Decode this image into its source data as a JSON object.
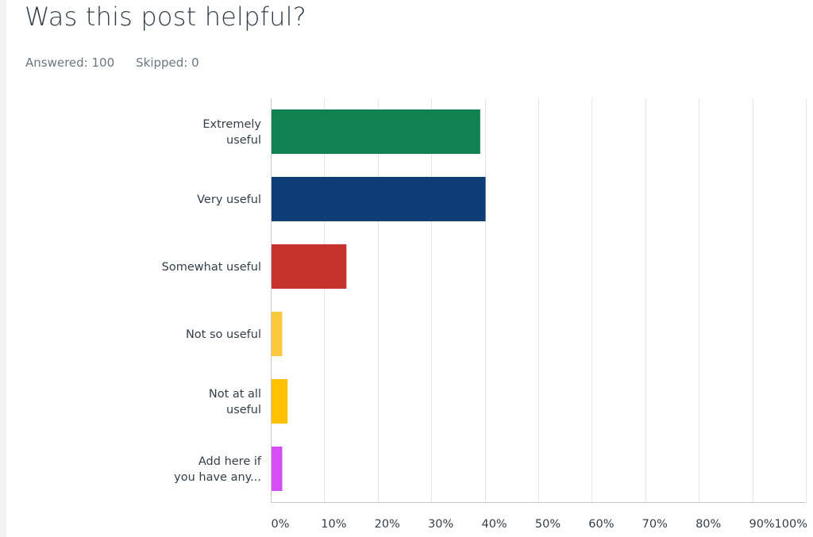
{
  "question": {
    "title": "Was this post helpful?",
    "answered": "Answered: 100",
    "skipped": "Skipped: 0"
  },
  "chart_data": {
    "type": "bar",
    "orientation": "horizontal",
    "categories": [
      [
        "Extremely",
        "useful"
      ],
      [
        "Very useful"
      ],
      [
        "Somewhat useful"
      ],
      [
        "Not so useful"
      ],
      [
        "Not at all",
        "useful"
      ],
      [
        "Add here if",
        "you have any..."
      ]
    ],
    "values": [
      39,
      40,
      14,
      2,
      3,
      2
    ],
    "colors": [
      "#128152",
      "#0e3d77",
      "#c5332c",
      "#fcc93e",
      "#ffc000",
      "#d54df5"
    ],
    "xticks": [
      "0%",
      "10%",
      "20%",
      "30%",
      "40%",
      "50%",
      "60%",
      "70%",
      "80%",
      "90%",
      "100%"
    ],
    "xlim": [
      0,
      100
    ],
    "grid": true
  }
}
